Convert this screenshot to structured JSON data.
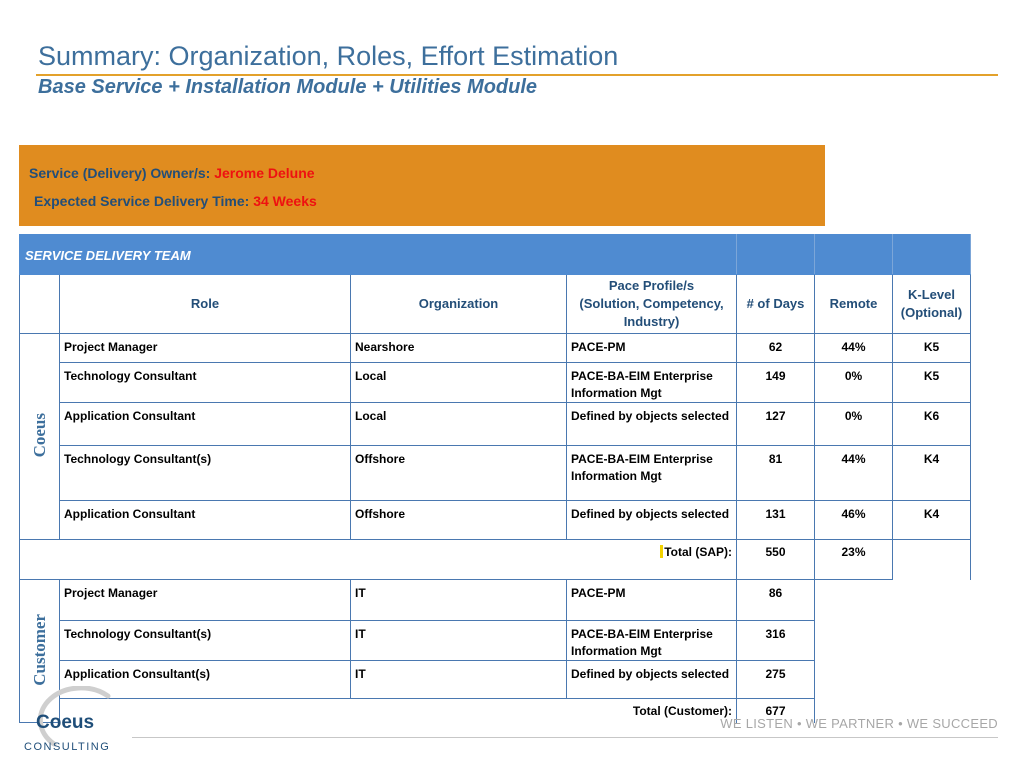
{
  "header": {
    "title": "Summary: Organization, Roles, Effort Estimation",
    "subtitle": "Base Service + Installation Module  + Utilities Module"
  },
  "service_box": {
    "owner_label": "Service (Delivery) Owner/s:",
    "owner_value": "Jerome Delune",
    "time_label": "Expected Service Delivery Time:",
    "time_value": "34 Weeks"
  },
  "table": {
    "section_title": "SERVICE  DELIVERY TEAM",
    "columns": {
      "role": "Role",
      "organization": "Organization",
      "pace_line1": "Pace Profile/s",
      "pace_line2": "(Solution, Competency, Industry)",
      "days": "# of Days",
      "remote": "Remote",
      "klevel_line1": "K-Level",
      "klevel_line2": "(Optional)"
    },
    "coeus": {
      "label": "Coeus",
      "rows": [
        {
          "role": "Project Manager",
          "org": "Nearshore",
          "pace": "PACE-PM",
          "days": "62",
          "remote": "44%",
          "klevel": "K5"
        },
        {
          "role": "Technology Consultant",
          "org": "Local",
          "pace": "PACE-BA-EIM   Enterprise Information Mgt",
          "days": "149",
          "remote": "0%",
          "klevel": "K5"
        },
        {
          "role": "Application Consultant",
          "org": "Local",
          "pace": "Defined by objects selected",
          "days": "127",
          "remote": "0%",
          "klevel": "K6"
        },
        {
          "role": "Technology Consultant(s)",
          "org": "Offshore",
          "pace": "PACE-BA-EIM   Enterprise Information Mgt",
          "days": "81",
          "remote": "44%",
          "klevel": "K4"
        },
        {
          "role": "Application Consultant",
          "org": "Offshore",
          "pace": "Defined by objects selected",
          "days": "131",
          "remote": "46%",
          "klevel": "K4"
        }
      ],
      "total_label": "Total (SAP):",
      "total_days": "550",
      "total_remote": "23%"
    },
    "customer": {
      "label": "Customer",
      "rows": [
        {
          "role": "Project Manager",
          "org": "IT",
          "pace": "PACE-PM",
          "days": "86"
        },
        {
          "role": "Technology Consultant(s)",
          "org": "IT",
          "pace": "PACE-BA-EIM   Enterprise Information Mgt",
          "days": "316"
        },
        {
          "role": "Application Consultant(s)",
          "org": "IT",
          "pace": "Defined by objects selected",
          "days": "275"
        }
      ],
      "total_label": "Total (Customer):",
      "total_days": "677"
    }
  },
  "footer": {
    "tagline": "WE LISTEN  •  WE PARTNER  •  WE SUCCEED",
    "logo_word": "Coeus",
    "logo_sub": "CONSULTING"
  },
  "colors": {
    "title_blue": "#3d6f9c",
    "accent_orange": "#e08c1f",
    "header_blue": "#4f8bd1",
    "highlight_red": "#ee1111"
  }
}
